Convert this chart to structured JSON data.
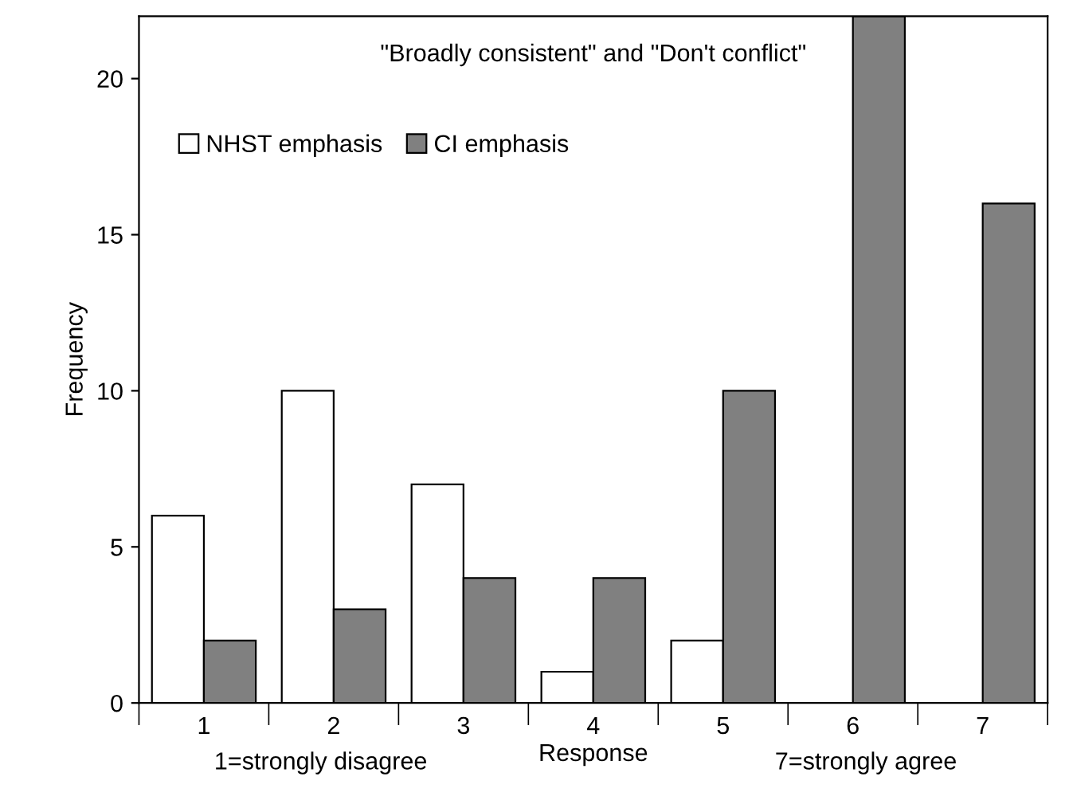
{
  "chart_data": {
    "type": "bar",
    "title": "\"Broadly consistent\" and \"Don't conflict\"",
    "xlabel": "Response",
    "ylabel": "Frequency",
    "annotations": [
      "1=strongly disagree",
      "7=strongly agree"
    ],
    "categories": [
      "1",
      "2",
      "3",
      "4",
      "5",
      "6",
      "7"
    ],
    "series": [
      {
        "name": "NHST emphasis",
        "color": "#ffffff",
        "values": [
          6,
          10,
          7,
          1,
          2,
          0,
          0
        ]
      },
      {
        "name": "CI emphasis",
        "color": "#808080",
        "values": [
          2,
          3,
          4,
          4,
          10,
          22,
          16
        ]
      }
    ],
    "ylim": [
      0,
      22
    ],
    "yticks": [
      0,
      5,
      10,
      15,
      20
    ],
    "legend": "top left"
  }
}
